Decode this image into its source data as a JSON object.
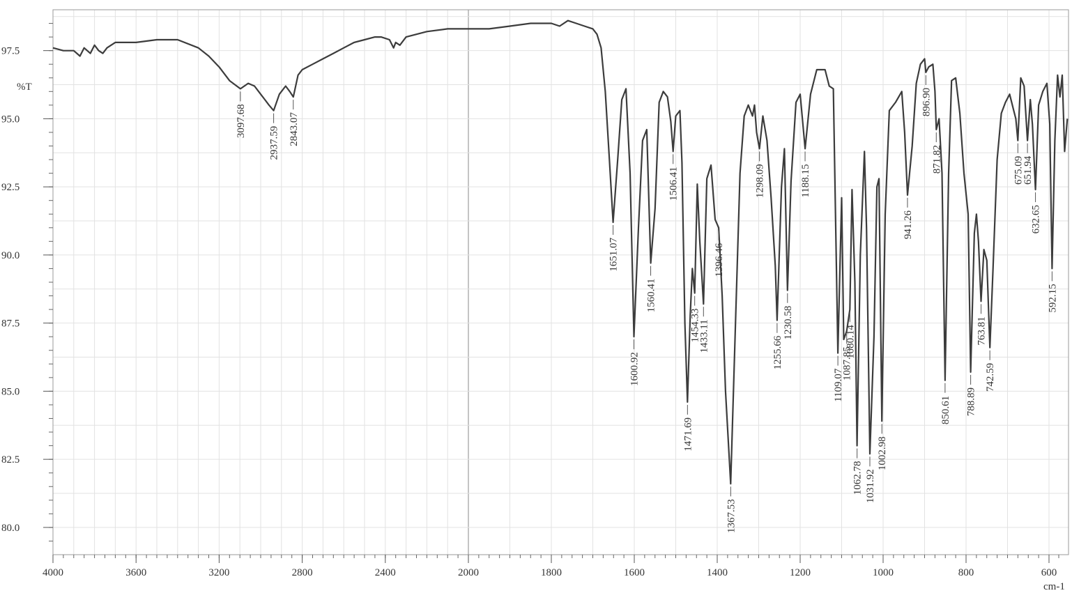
{
  "chart_data": {
    "type": "line",
    "title": "",
    "xlabel": "cm-1",
    "ylabel": "%T",
    "xlim": [
      4000,
      550
    ],
    "ylim": [
      79,
      99
    ],
    "x_reversed": true,
    "x_ticks": [
      4000,
      3600,
      3200,
      2800,
      2400,
      2000,
      1800,
      1600,
      1400,
      1200,
      1000,
      800,
      600
    ],
    "x_tick_labels": [
      "4000",
      "3600",
      "3200",
      "2800",
      "2400",
      "2000",
      "1800",
      "1600",
      "1400",
      "1200",
      "1000",
      "800",
      "600"
    ],
    "y_ticks": [
      80.0,
      82.5,
      85.0,
      87.5,
      90.0,
      92.5,
      95.0,
      97.5
    ],
    "y_tick_labels": [
      "80.0",
      "82.5",
      "85.0",
      "87.5",
      "90.0",
      "92.5",
      "95.0",
      "97.5"
    ],
    "grid": true,
    "line_color": "#3c3c3c",
    "grid_color": "#e2e2e2",
    "series": [
      {
        "x": [
          4000,
          3950,
          3900,
          3870,
          3850,
          3820,
          3800,
          3780,
          3760,
          3740,
          3720,
          3700,
          3650,
          3600,
          3500,
          3400,
          3300,
          3250,
          3200,
          3150,
          3097.68,
          3060,
          3030,
          3000,
          2980,
          2960,
          2937.59,
          2910,
          2880,
          2860,
          2843.07,
          2820,
          2800,
          2750,
          2700,
          2650,
          2600,
          2550,
          2500,
          2450,
          2420,
          2380,
          2360,
          2350,
          2330,
          2300,
          2250,
          2200,
          2100,
          2000,
          1950,
          1900,
          1850,
          1800,
          1780,
          1760,
          1740,
          1720,
          1700,
          1690,
          1680,
          1670,
          1660,
          1651.07,
          1640,
          1630,
          1620,
          1610,
          1600.92,
          1590,
          1580,
          1570,
          1560.41,
          1550,
          1540,
          1530,
          1520,
          1512,
          1506.41,
          1500,
          1490,
          1485,
          1478,
          1471.69,
          1465,
          1460,
          1454.33,
          1448,
          1442,
          1433.11,
          1425,
          1415,
          1405,
          1396.46,
          1388,
          1380,
          1367.53,
          1355,
          1345,
          1335,
          1325,
          1315,
          1310,
          1305,
          1298.09,
          1290,
          1280,
          1270,
          1260,
          1255.66,
          1245,
          1238,
          1230.58,
          1222,
          1210,
          1200,
          1188.15,
          1175,
          1160,
          1140,
          1130,
          1120,
          1109.07,
          1100,
          1095,
          1087.85,
          1080.14,
          1075,
          1068,
          1062.78,
          1055,
          1045,
          1040,
          1031.92,
          1022,
          1015,
          1010,
          1002.98,
          995,
          985,
          970,
          955,
          948,
          941.26,
          930,
          920,
          910,
          900,
          896.9,
          890,
          880,
          875,
          871.82,
          865,
          858,
          850.61,
          842,
          835,
          825,
          815,
          805,
          795,
          788.89,
          780,
          775,
          770,
          763.81,
          757,
          750,
          742.59,
          735,
          725,
          715,
          705,
          695,
          685,
          680,
          675.09,
          668,
          660,
          651.94,
          645,
          640,
          632.65,
          625,
          615,
          605,
          598,
          592.15,
          585,
          578,
          572,
          566,
          560,
          553
        ],
        "y": [
          97.6,
          97.5,
          97.5,
          97.3,
          97.6,
          97.4,
          97.7,
          97.5,
          97.4,
          97.6,
          97.7,
          97.8,
          97.8,
          97.8,
          97.9,
          97.9,
          97.6,
          97.3,
          96.9,
          96.4,
          96.1,
          96.3,
          96.2,
          95.9,
          95.7,
          95.5,
          95.3,
          95.9,
          96.2,
          96.0,
          95.8,
          96.6,
          96.8,
          97.0,
          97.2,
          97.4,
          97.6,
          97.8,
          97.9,
          98.0,
          98.0,
          97.9,
          97.6,
          97.8,
          97.7,
          98.0,
          98.1,
          98.2,
          98.3,
          98.3,
          98.3,
          98.4,
          98.5,
          98.5,
          98.4,
          98.6,
          98.5,
          98.4,
          98.3,
          98.1,
          97.6,
          96.0,
          93.5,
          91.2,
          93.5,
          95.7,
          96.1,
          93.0,
          87.0,
          91.0,
          94.2,
          94.6,
          89.7,
          91.7,
          95.6,
          96.0,
          95.8,
          94.9,
          93.8,
          95.1,
          95.3,
          93.4,
          87.5,
          84.6,
          87.8,
          89.5,
          88.6,
          92.6,
          90.5,
          88.2,
          92.8,
          93.3,
          91.3,
          91.0,
          88.5,
          85.0,
          81.6,
          88.0,
          93.0,
          95.1,
          95.5,
          95.1,
          95.5,
          94.5,
          93.9,
          95.1,
          94.2,
          92.1,
          89.6,
          87.6,
          92.5,
          93.9,
          88.7,
          92.7,
          95.6,
          95.9,
          93.9,
          95.9,
          96.8,
          96.8,
          96.2,
          96.1,
          86.4,
          92.1,
          86.9,
          87.2,
          88.0,
          92.4,
          89.0,
          83.0,
          90.0,
          93.8,
          91.0,
          82.7,
          87.0,
          92.5,
          92.8,
          83.9,
          91.5,
          95.3,
          95.6,
          96.0,
          94.5,
          92.2,
          94.0,
          96.3,
          97.0,
          97.2,
          96.7,
          96.9,
          97.0,
          96.0,
          94.6,
          95.0,
          93.0,
          85.4,
          93.0,
          96.4,
          96.5,
          95.2,
          93.0,
          91.5,
          85.7,
          90.8,
          91.5,
          90.5,
          88.3,
          90.2,
          89.8,
          86.6,
          89.5,
          93.5,
          95.2,
          95.6,
          95.9,
          95.3,
          95.0,
          94.2,
          96.5,
          96.2,
          94.2,
          95.7,
          94.8,
          92.4,
          95.5,
          96.0,
          96.3,
          94.8,
          89.5,
          94.2,
          96.6,
          95.8,
          96.6,
          93.8,
          95.0
        ]
      }
    ],
    "peak_labels": [
      {
        "x": 3097.68,
        "label": "3097.68"
      },
      {
        "x": 2937.59,
        "label": "2937.59"
      },
      {
        "x": 2843.07,
        "label": "2843.07"
      },
      {
        "x": 1651.07,
        "label": "1651.07"
      },
      {
        "x": 1600.92,
        "label": "1600.92"
      },
      {
        "x": 1560.41,
        "label": "1560.41"
      },
      {
        "x": 1506.41,
        "label": "1506.41"
      },
      {
        "x": 1471.69,
        "label": "1471.69"
      },
      {
        "x": 1454.33,
        "label": "1454.33"
      },
      {
        "x": 1433.11,
        "label": "1433.11"
      },
      {
        "x": 1396.46,
        "label": "1396.46"
      },
      {
        "x": 1367.53,
        "label": "1367.53"
      },
      {
        "x": 1298.09,
        "label": "1298.09"
      },
      {
        "x": 1255.66,
        "label": "1255.66"
      },
      {
        "x": 1230.58,
        "label": "1230.58"
      },
      {
        "x": 1188.15,
        "label": "1188.15"
      },
      {
        "x": 1109.07,
        "label": "1109.07"
      },
      {
        "x": 1087.85,
        "label": "1087.85"
      },
      {
        "x": 1080.14,
        "label": "1080.14"
      },
      {
        "x": 1062.78,
        "label": "1062.78"
      },
      {
        "x": 1031.92,
        "label": "1031.92"
      },
      {
        "x": 1002.98,
        "label": "1002.98"
      },
      {
        "x": 941.26,
        "label": "941.26"
      },
      {
        "x": 896.9,
        "label": "896.90"
      },
      {
        "x": 871.82,
        "label": "871.82"
      },
      {
        "x": 850.61,
        "label": "850.61"
      },
      {
        "x": 788.89,
        "label": "788.89"
      },
      {
        "x": 763.81,
        "label": "763.81"
      },
      {
        "x": 742.59,
        "label": "742.59"
      },
      {
        "x": 675.09,
        "label": "675.09"
      },
      {
        "x": 651.94,
        "label": "651.94"
      },
      {
        "x": 632.65,
        "label": "632.65"
      },
      {
        "x": 592.15,
        "label": "592.15"
      }
    ]
  }
}
